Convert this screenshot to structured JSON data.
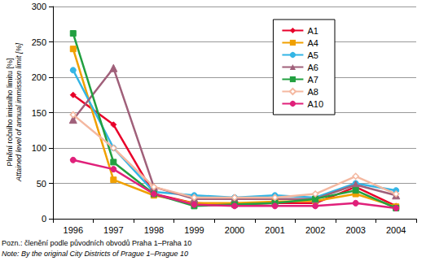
{
  "chart_data": {
    "type": "line",
    "y_label": "Plnění ročního imisního limitu [%]",
    "y_label_en": "Attained level of annual immission limit [%]",
    "note": "Pozn.: členění podle původních obvodů Praha 1–Praha 10",
    "note_en": "Note: By the original City Districts of Prague 1–Prague 10",
    "categories": [
      "1996",
      "1997",
      "1998",
      "1999",
      "2000",
      "2001",
      "2002",
      "2003",
      "2004"
    ],
    "series": [
      {
        "name": "A1",
        "color": "#e8002a",
        "marker": "diamond",
        "values": [
          175,
          133,
          35,
          22,
          20,
          22,
          22,
          45,
          18
        ]
      },
      {
        "name": "A4",
        "color": "#f0a000",
        "marker": "square",
        "values": [
          240,
          55,
          33,
          22,
          22,
          24,
          25,
          35,
          17
        ]
      },
      {
        "name": "A5",
        "color": "#33b5e5",
        "marker": "circle",
        "values": [
          210,
          100,
          38,
          33,
          30,
          33,
          30,
          50,
          40
        ]
      },
      {
        "name": "A6",
        "color": "#a0607a",
        "marker": "triangle",
        "values": [
          140,
          213,
          45,
          28,
          28,
          28,
          28,
          48,
          33
        ]
      },
      {
        "name": "A7",
        "color": "#22a040",
        "marker": "square",
        "values": [
          262,
          80,
          35,
          18,
          20,
          22,
          28,
          40,
          15
        ]
      },
      {
        "name": "A8",
        "color": "#f4b8a0",
        "marker": "diamond",
        "values": [
          147,
          100,
          45,
          30,
          30,
          30,
          35,
          60,
          35
        ]
      },
      {
        "name": "A10",
        "color": "#e0207a",
        "marker": "circle",
        "values": [
          83,
          70,
          35,
          20,
          18,
          18,
          18,
          22,
          15
        ]
      }
    ],
    "ylim": [
      0,
      300
    ],
    "yticks": [
      0,
      50,
      100,
      150,
      200,
      250,
      300
    ],
    "grid": true,
    "legend": "top-right"
  }
}
